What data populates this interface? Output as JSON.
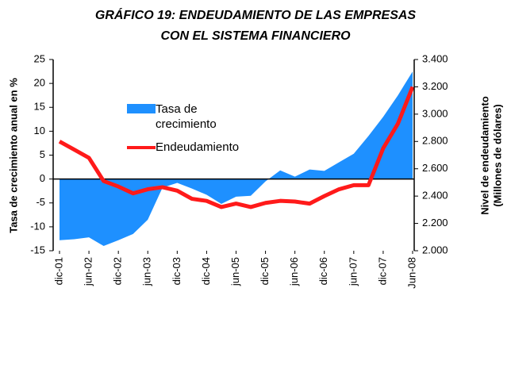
{
  "chart_data": {
    "type": "area-line",
    "title": [
      "GRÁFICO 19: ENDEUDAMIENTO DE LAS EMPRESAS",
      "CON EL SISTEMA FINANCIERO"
    ],
    "ylabel": "Tasa de crecimiento anual en %",
    "y2label": [
      "Nivel de endeudamiento",
      "(Millones de dólares)"
    ],
    "categories": [
      "dic-01",
      null,
      "jun-02",
      null,
      "dic-02",
      null,
      "jun-03",
      null,
      "dic-03",
      null,
      "dic-04",
      null,
      "jun-05",
      null,
      "dic-05",
      null,
      "jun-06",
      null,
      "dic-06",
      null,
      "jun-07",
      null,
      "dic-07",
      null,
      "Jun-08"
    ],
    "series": [
      {
        "name": "Tasa de crecimiento",
        "color": "#1e90ff",
        "kind": "area",
        "values": [
          -12.8,
          -12.6,
          -12.2,
          -14,
          -12.8,
          -11.5,
          -8.5,
          -1.8,
          -0.8,
          -2,
          -3.3,
          -5.2,
          -3.7,
          -3.5,
          -0.5,
          1.8,
          0.5,
          2,
          1.7,
          3.5,
          5.3,
          9,
          13,
          17.5,
          22.5
        ]
      },
      {
        "name": "Endeudamiento",
        "color": "#ff1a1a",
        "kind": "line",
        "axis": "y2",
        "values": [
          2800,
          2740,
          2680,
          2510,
          2470,
          2420,
          2450,
          2465,
          2440,
          2380,
          2365,
          2320,
          2345,
          2320,
          2350,
          2365,
          2360,
          2345,
          2400,
          2450,
          2480,
          2480,
          2750,
          2930,
          3200
        ]
      }
    ],
    "ylim": [
      -15,
      25
    ],
    "yticks": [
      -15,
      -10,
      -5,
      0,
      5,
      10,
      15,
      20,
      25
    ],
    "y2lim": [
      2000,
      3400
    ],
    "y2ticks": [
      {
        "value": 2000,
        "label": "2.000"
      },
      {
        "value": 2200,
        "label": "2.200"
      },
      {
        "value": 2400,
        "label": "2.400"
      },
      {
        "value": 2600,
        "label": "2.600"
      },
      {
        "value": 2800,
        "label": "2.800"
      },
      {
        "value": 3000,
        "label": "3.000"
      },
      {
        "value": 3200,
        "label": "3.200"
      },
      {
        "value": 3400,
        "label": "3.400"
      }
    ]
  }
}
